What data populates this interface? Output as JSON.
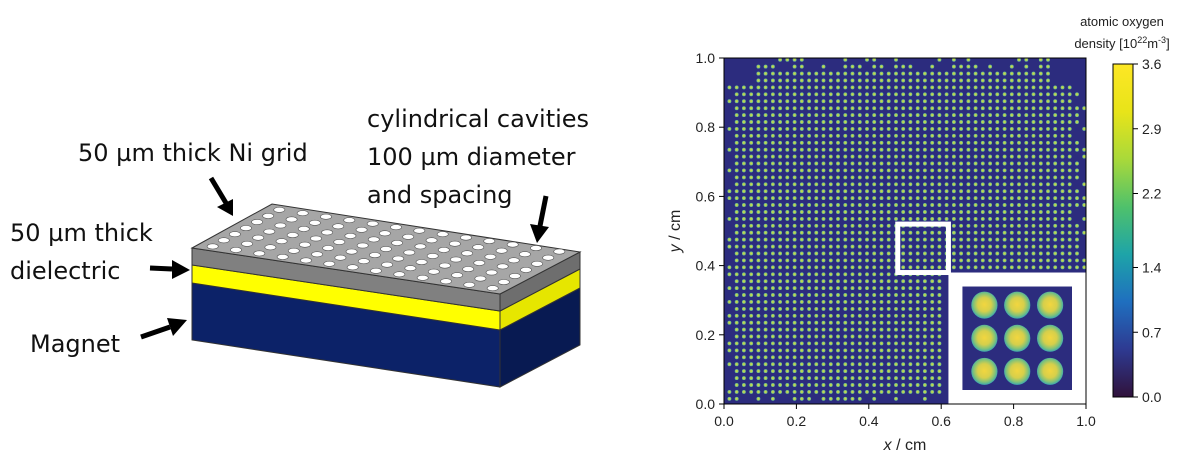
{
  "diagram": {
    "labels": {
      "ni_grid": "50 µm thick Ni grid",
      "cavities_line1": "cylindrical cavities",
      "cavities_line2": "100 µm diameter",
      "cavities_line3": "and spacing",
      "dielectric_line1": "50 µm thick",
      "dielectric_line2": "dielectric",
      "magnet": "Magnet"
    },
    "colors": {
      "ni_top": "#a6a6a6",
      "ni_front": "#808080",
      "ni_side": "#6e6e6e",
      "dielectric_front": "#ffff00",
      "dielectric_side": "#e6e600",
      "magnet_front": "#0c2268",
      "magnet_side": "#081a52",
      "hole_fill": "#ffffff"
    }
  },
  "chart_data": {
    "type": "heatmap",
    "title": "",
    "xlabel": "x / cm",
    "ylabel": "y / cm",
    "xlabel_var": "x",
    "xlabel_unit": " / cm",
    "ylabel_var": "y",
    "ylabel_unit": " / cm",
    "xlim": [
      0.0,
      1.0
    ],
    "ylim": [
      0.0,
      1.0
    ],
    "xticks": [
      "0.0",
      "0.2",
      "0.4",
      "0.6",
      "0.8",
      "1.0"
    ],
    "yticks": [
      "0.0",
      "0.2",
      "0.4",
      "0.6",
      "0.8",
      "1.0"
    ],
    "colorbar": {
      "title_line1": "atomic oxygen",
      "title_line2_pre": "density [10",
      "title_line2_sup1": "22",
      "title_line2_mid": "m",
      "title_line2_sup2": "-3",
      "title_line2_post": "]",
      "ticks": [
        "0.0",
        "0.7",
        "1.4",
        "2.2",
        "2.9",
        "3.6"
      ],
      "min": 0.0,
      "max": 3.6
    },
    "grid_spacing_cm": 0.02,
    "dot_density_range": [
      1.4,
      2.9
    ],
    "background_density": 0.0,
    "inset_region": {
      "x": [
        0.48,
        0.62
      ],
      "y": [
        0.38,
        0.52
      ]
    },
    "inset_window": {
      "x": [
        0.62,
        1.0
      ],
      "y": [
        0.0,
        0.38
      ]
    },
    "colormap": [
      "#30123b",
      "#2e3a91",
      "#1f6fbf",
      "#1ea4a8",
      "#4fc16b",
      "#a9d93a",
      "#e8e419",
      "#fde725"
    ],
    "background_color": "#2c2c7e"
  }
}
